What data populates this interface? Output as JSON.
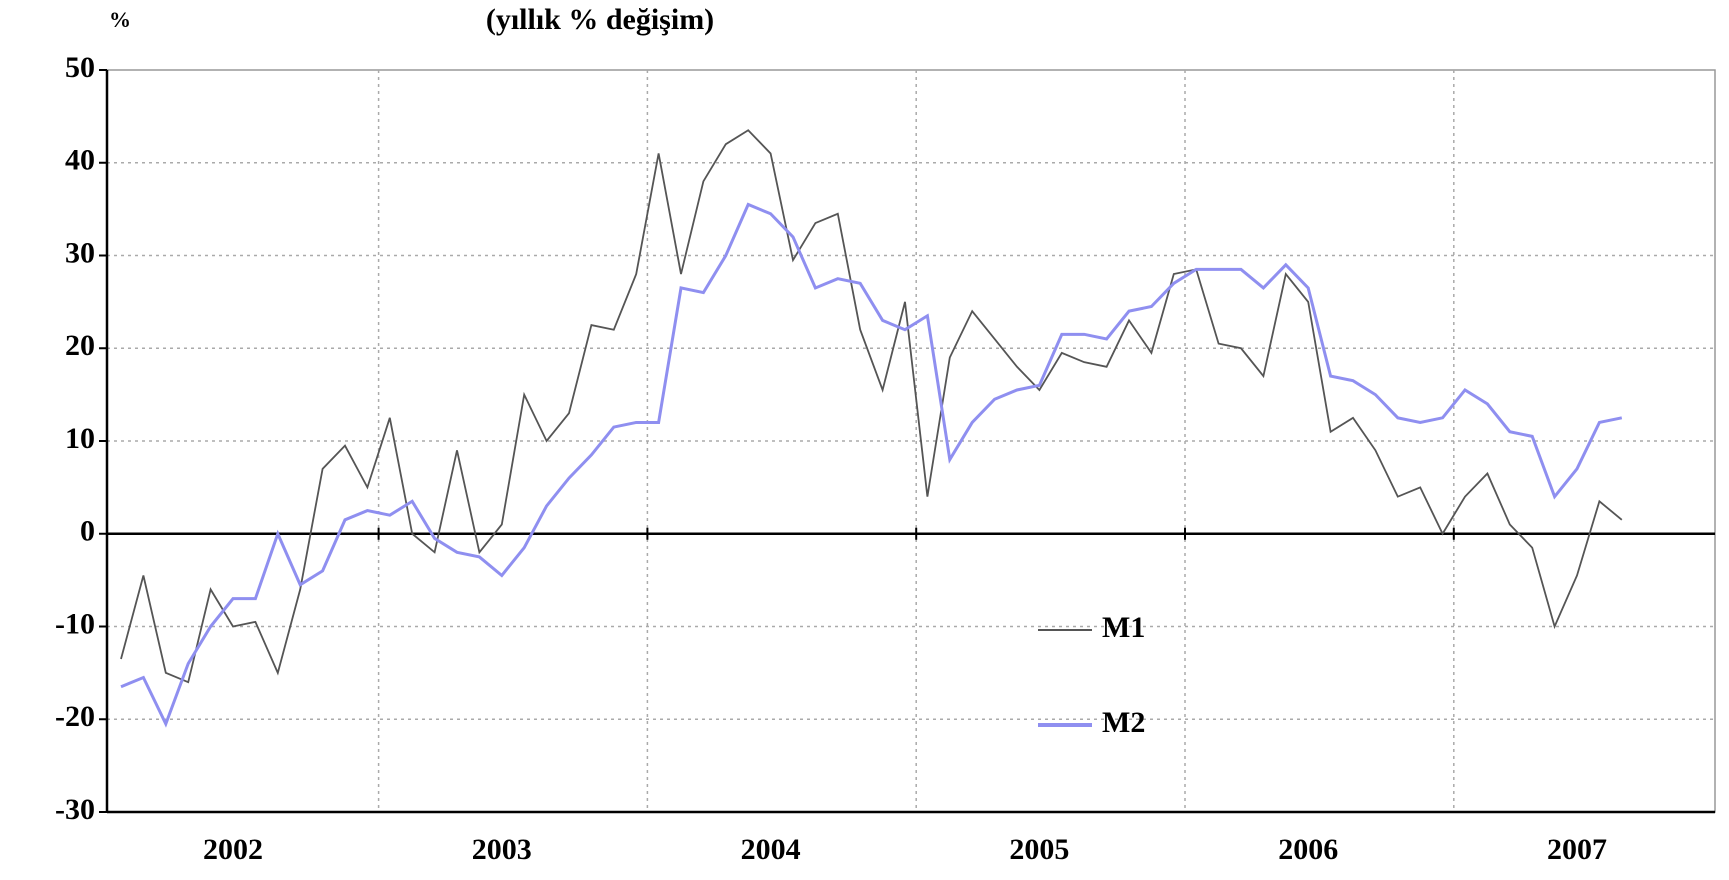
{
  "chart_data": {
    "type": "line",
    "title": "(yıllık % değişim)",
    "y_label": "%",
    "categories": [
      null,
      null,
      null,
      null,
      null,
      "2002",
      null,
      null,
      null,
      null,
      null,
      null,
      null,
      null,
      null,
      null,
      null,
      "2003",
      null,
      null,
      null,
      null,
      null,
      null,
      null,
      null,
      null,
      null,
      null,
      "2004",
      null,
      null,
      null,
      null,
      null,
      null,
      null,
      null,
      null,
      null,
      null,
      "2005",
      null,
      null,
      null,
      null,
      null,
      null,
      null,
      null,
      null,
      null,
      null,
      "2006",
      null,
      null,
      null,
      null,
      null,
      null,
      null,
      null,
      null,
      null,
      null,
      "2007",
      null,
      null
    ],
    "series": [
      {
        "name": "M1",
        "color": "#555555",
        "values": [
          -13.5,
          -4.5,
          -15,
          -16,
          -6,
          -10,
          -9.5,
          -15,
          -6,
          7,
          9.5,
          5,
          12.5,
          0,
          -2,
          9,
          -2,
          1,
          15,
          10,
          13,
          22.5,
          22,
          28,
          41,
          28,
          38,
          42,
          43.5,
          41,
          29.5,
          33.5,
          34.5,
          22,
          15.5,
          25,
          4,
          19,
          24,
          21,
          18,
          15.5,
          19.5,
          18.5,
          18,
          23,
          19.5,
          28,
          28.5,
          20.5,
          20,
          17,
          28,
          25,
          11,
          12.5,
          9,
          4,
          5,
          0,
          4,
          6.5,
          1,
          -1.5,
          -10,
          -4.5,
          3.5,
          1.5
        ]
      },
      {
        "name": "M2",
        "color": "#8f8ff0",
        "values": [
          -16.5,
          -15.5,
          -20.5,
          -14,
          -10,
          -7,
          -7,
          0,
          -5.5,
          -4,
          1.5,
          2.5,
          2,
          3.5,
          -0.5,
          -2,
          -2.5,
          -4.5,
          -1.5,
          3,
          6,
          8.5,
          11.5,
          12,
          12,
          26.5,
          26,
          30,
          35.5,
          34.5,
          32,
          26.5,
          27.5,
          27,
          23,
          22,
          23.5,
          8,
          12,
          14.5,
          15.5,
          16,
          21.5,
          21.5,
          21,
          24,
          24.5,
          27,
          28.5,
          28.5,
          28.5,
          26.5,
          29,
          26.5,
          17,
          16.5,
          15,
          12.5,
          12,
          12.5,
          15.5,
          14,
          11,
          10.5,
          4,
          7,
          12,
          12.5
        ]
      }
    ],
    "ylim": [
      -30,
      50
    ],
    "yticks": [
      -30,
      -20,
      -10,
      0,
      10,
      20,
      30,
      40,
      50
    ],
    "grid": true,
    "legend": "bottom-center"
  }
}
